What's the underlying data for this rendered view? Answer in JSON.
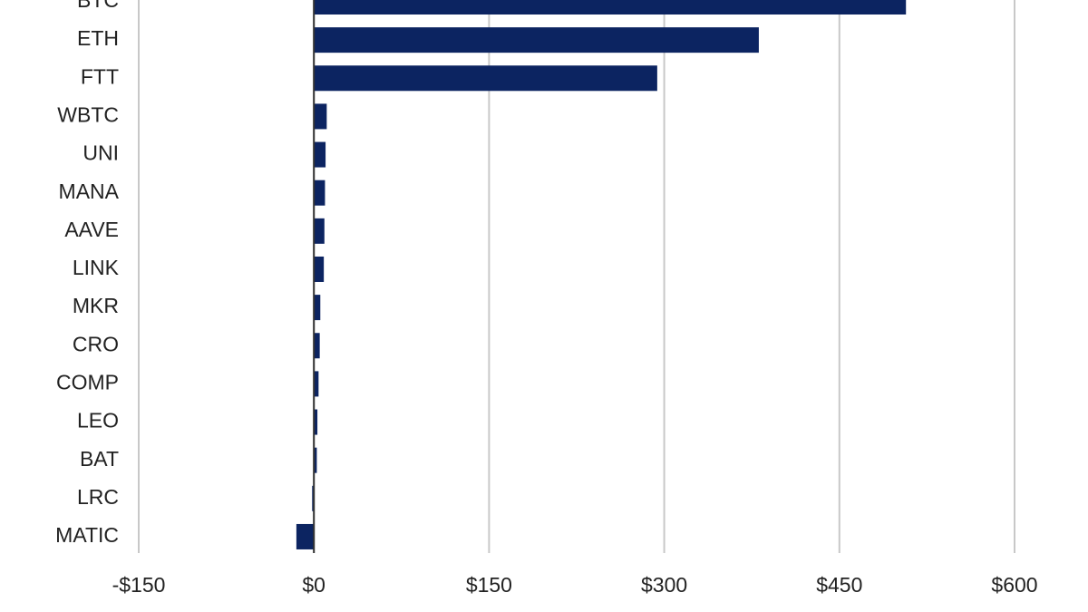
{
  "chart_data": {
    "type": "hbar",
    "categories": [
      "BTC",
      "ETH",
      "FTT",
      "WBTC",
      "UNI",
      "MANA",
      "AAVE",
      "LINK",
      "MKR",
      "CRO",
      "COMP",
      "LEO",
      "BAT",
      "LRC",
      "MATIC"
    ],
    "values": [
      507,
      381,
      294,
      11,
      10,
      9.5,
      9,
      8.5,
      5.5,
      5,
      4,
      3,
      2.5,
      -1.5,
      -15
    ],
    "color": "#0c2461",
    "xlim": [
      -150,
      600
    ],
    "xticks": [
      {
        "value": -150,
        "label": "-$150"
      },
      {
        "value": 0,
        "label": "$0"
      },
      {
        "value": 150,
        "label": "$150"
      },
      {
        "value": 300,
        "label": "$300"
      },
      {
        "value": 450,
        "label": "$450"
      },
      {
        "value": 600,
        "label": "$600"
      }
    ],
    "grid": true
  }
}
